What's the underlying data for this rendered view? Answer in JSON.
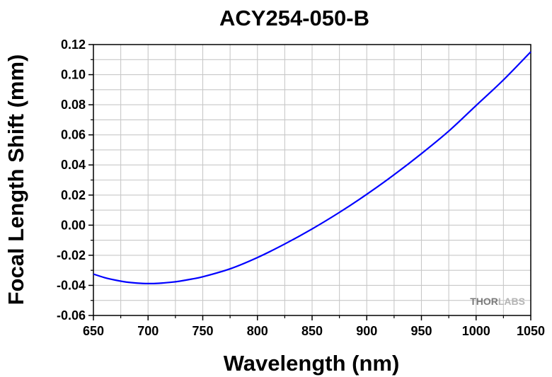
{
  "chart_data": {
    "type": "line",
    "title": "ACY254-050-B",
    "xlabel": "Wavelength (nm)",
    "ylabel": "Focal Length Shift (mm)",
    "xlim": [
      650,
      1050
    ],
    "ylim": [
      -0.06,
      0.12
    ],
    "xticks": [
      "650",
      "700",
      "750",
      "800",
      "850",
      "900",
      "950",
      "1000",
      "1050"
    ],
    "yticks": [
      "0.12",
      "0.10",
      "0.08",
      "0.06",
      "0.04",
      "0.02",
      "0.00",
      "-0.02",
      "-0.04",
      "-0.06"
    ],
    "grid": true,
    "series": [
      {
        "color": "#0000ff",
        "x": [
          650,
          660,
          670,
          680,
          690,
          700,
          710,
          720,
          730,
          740,
          750,
          775,
          800,
          825,
          850,
          875,
          900,
          925,
          950,
          975,
          1000,
          1025,
          1050
        ],
        "y": [
          -0.0325,
          -0.0348,
          -0.0365,
          -0.0378,
          -0.0385,
          -0.0388,
          -0.0386,
          -0.038,
          -0.0371,
          -0.0358,
          -0.0343,
          -0.029,
          -0.0215,
          -0.0125,
          -0.0025,
          0.0085,
          0.0205,
          0.0335,
          0.0475,
          0.0625,
          0.0795,
          0.0965,
          0.1152
        ]
      }
    ]
  },
  "watermark": {
    "part1": "THOR",
    "part2": "LABS",
    "color1": "#7a7a7a",
    "color2": "#b5b5b5"
  }
}
